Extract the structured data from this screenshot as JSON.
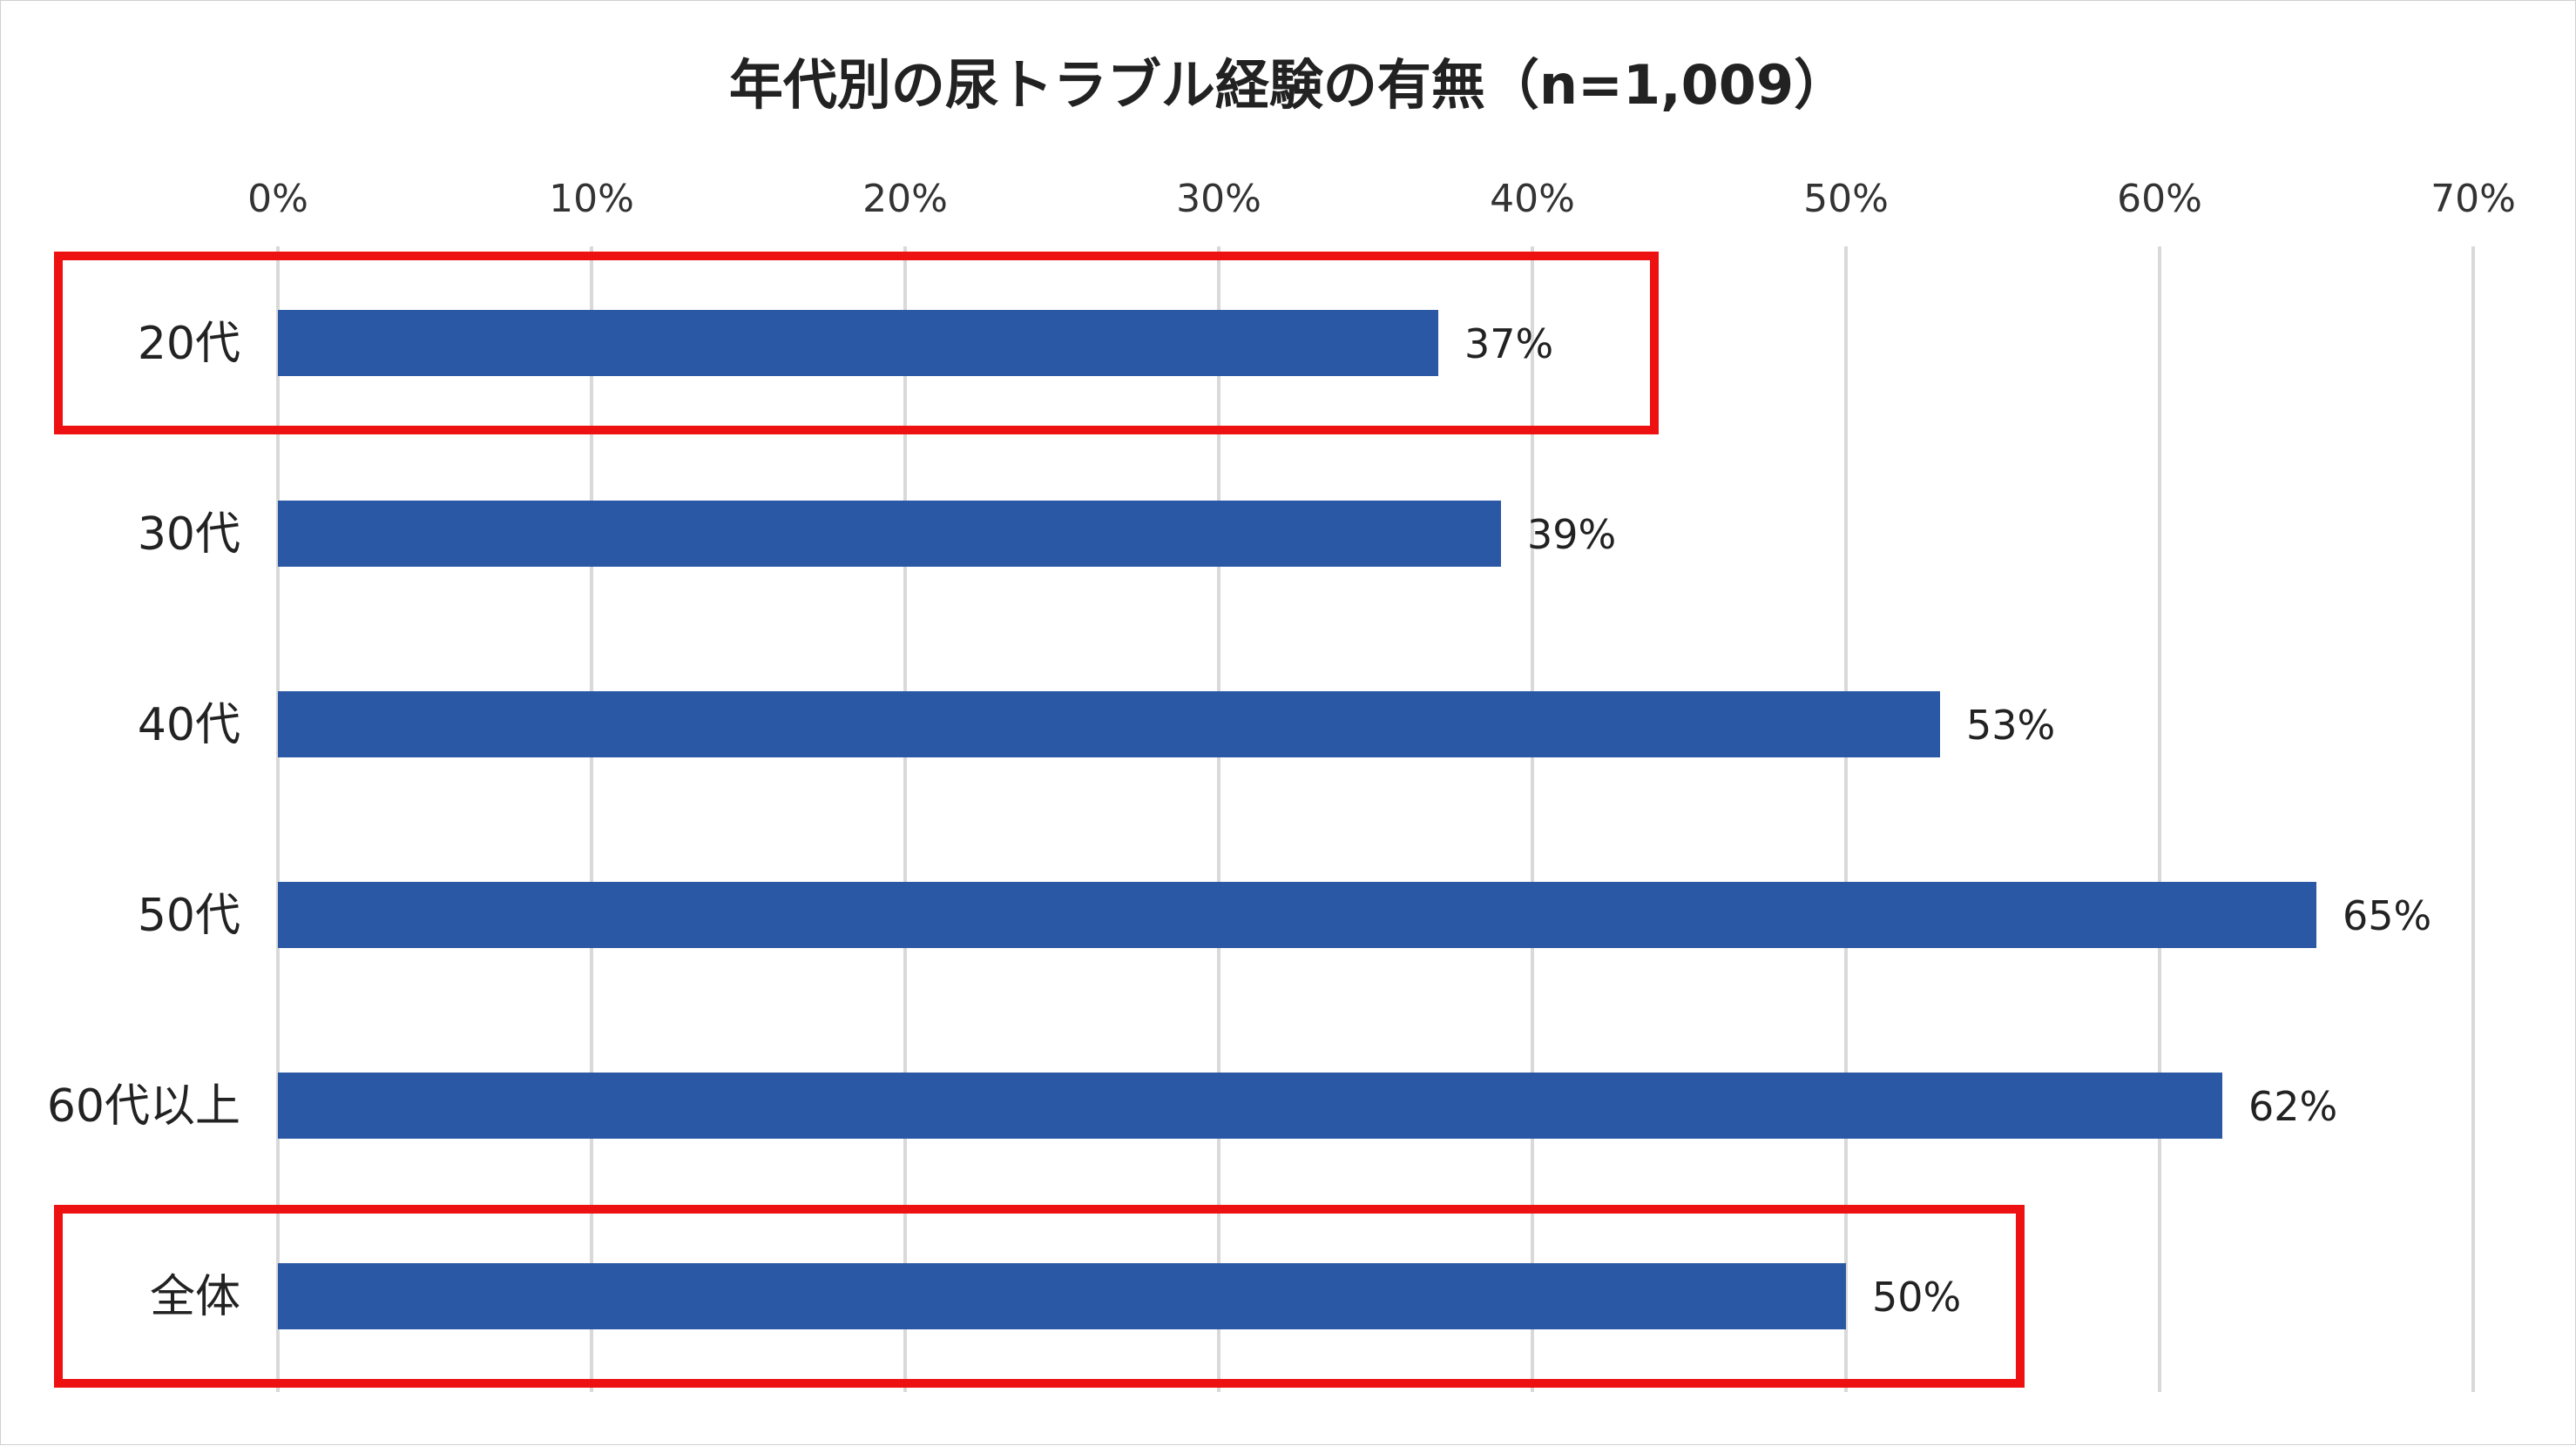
{
  "chart_data": {
    "type": "bar",
    "orientation": "horizontal",
    "title": "年代別の尿トラブル経験の有無（n=1,009）",
    "categories": [
      "20代",
      "30代",
      "40代",
      "50代",
      "60代以上",
      "全体"
    ],
    "values": [
      37,
      39,
      53,
      65,
      62,
      50
    ],
    "value_labels": [
      "37%",
      "39%",
      "53%",
      "65%",
      "62%",
      "50%"
    ],
    "xlim": [
      0,
      70
    ],
    "xticks": [
      0,
      10,
      20,
      30,
      40,
      50,
      60,
      70
    ],
    "xtick_labels": [
      "0%",
      "10%",
      "20%",
      "30%",
      "40%",
      "50%",
      "60%",
      "70%"
    ],
    "x_axis_position": "top",
    "grid": "vertical",
    "legend": "none",
    "highlighted_categories": [
      "20代",
      "全体"
    ],
    "colors": {
      "bar": "#2b58a5",
      "grid": "#d9d9d9",
      "highlight": "#ee1111",
      "text": "#222222"
    }
  }
}
